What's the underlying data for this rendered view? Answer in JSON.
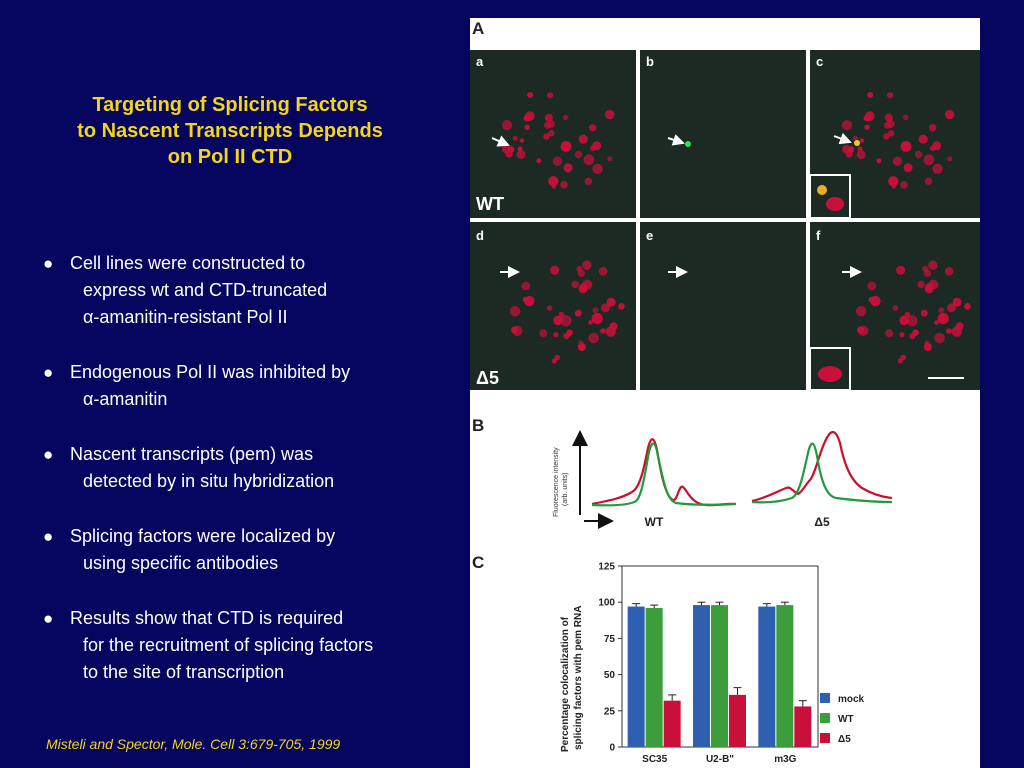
{
  "title": {
    "lines": [
      "Targeting of Splicing Factors",
      "to Nascent Transcripts Depends",
      "on Pol II CTD"
    ]
  },
  "bullets": [
    {
      "lines": [
        "Cell lines were constructed to",
        "express wt and CTD-truncated",
        "α-amanitin-resistant Pol II"
      ]
    },
    {
      "lines": [
        "Endogenous Pol II was inhibited by",
        "α-amanitin"
      ]
    },
    {
      "lines": [
        "Nascent transcripts (pem) was",
        "detected by in situ hybridization"
      ]
    },
    {
      "lines": [
        "Splicing factors were localized by",
        "using specific antibodies"
      ]
    },
    {
      "lines": [
        "Results show that CTD is required",
        "for the recruitment of splicing factors",
        "to the site of transcription"
      ]
    }
  ],
  "citation": "Misteli and Spector, Mole. Cell 3:679-705, 1999",
  "figure": {
    "panel_A": {
      "label": "A",
      "sub_labels": [
        "a",
        "b",
        "c",
        "d",
        "e",
        "f"
      ],
      "row_labels": [
        "WT",
        "Δ5"
      ]
    },
    "panel_B": {
      "label": "B",
      "ylabel_lines": [
        "Fluorescence intensity",
        "(arb. units)"
      ],
      "xlabels": [
        "WT",
        "Δ5"
      ]
    },
    "panel_C": {
      "label": "C"
    }
  },
  "chart_data": {
    "type": "bar",
    "title": "",
    "xlabel": "",
    "ylabel": "Percentage colocalization of splicing factors with pem RNA",
    "ylabel_lines": [
      "Percentage colocalization of",
      "splicing factors with pem RNA"
    ],
    "ylim": [
      0,
      125
    ],
    "yticks": [
      0,
      25,
      50,
      75,
      100,
      125
    ],
    "categories": [
      "SC35",
      "U2-B\"",
      "m3G"
    ],
    "series": [
      {
        "name": "mock",
        "color": "#2f5fb0",
        "values": [
          97,
          98,
          97
        ],
        "errors": [
          2,
          2,
          2
        ]
      },
      {
        "name": "WT",
        "color": "#3b9e3b",
        "values": [
          96,
          98,
          98
        ],
        "errors": [
          2,
          2,
          2
        ]
      },
      {
        "name": "Δ5",
        "color": "#c8103a",
        "values": [
          32,
          36,
          28
        ],
        "errors": [
          4,
          5,
          4
        ]
      }
    ],
    "legend_position": "bottom-right",
    "grid": false
  }
}
